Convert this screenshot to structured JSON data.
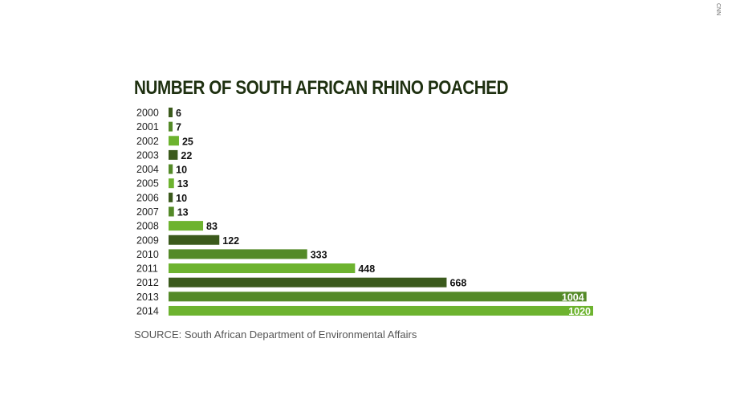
{
  "logo": "CNN",
  "chart_data": {
    "type": "bar",
    "orientation": "horizontal",
    "title": "NUMBER OF SOUTH AFRICAN RHINO POACHED",
    "source": "SOURCE: South African Department of Environmental Affairs",
    "categories": [
      "2000",
      "2001",
      "2002",
      "2003",
      "2004",
      "2005",
      "2006",
      "2007",
      "2008",
      "2009",
      "2010",
      "2011",
      "2012",
      "2013",
      "2014"
    ],
    "values": [
      6,
      7,
      25,
      22,
      10,
      13,
      10,
      13,
      83,
      122,
      333,
      448,
      668,
      1004,
      1020
    ],
    "colors": [
      "#3b5a1c",
      "#548a28",
      "#6db32f"
    ],
    "grid": false,
    "xlim": [
      0,
      1020
    ]
  }
}
